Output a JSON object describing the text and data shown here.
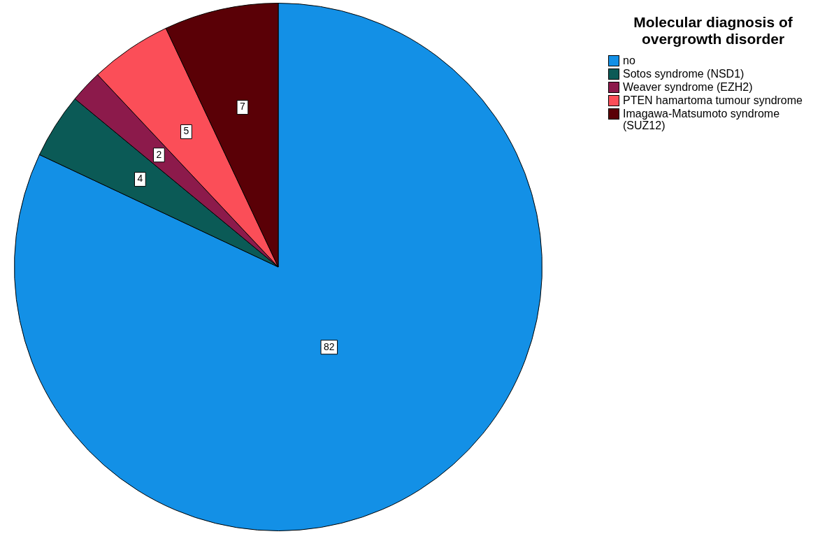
{
  "chart_data": {
    "type": "pie",
    "legend_title": "Molecular diagnosis of overgrowth disorder",
    "categories": [
      "no",
      "Sotos syndrome (NSD1)",
      "Weaver syndrome (EZH2)",
      "PTEN hamartoma tumour syndrome",
      "Imagawa-Matsumoto syndrome (SUZ12)"
    ],
    "values": [
      82,
      4,
      2,
      5,
      7
    ],
    "colors": [
      "#1390e6",
      "#0b5a56",
      "#8c1a4b",
      "#fb4e58",
      "#5a0006"
    ],
    "data_labels": true,
    "legend": "top right"
  }
}
